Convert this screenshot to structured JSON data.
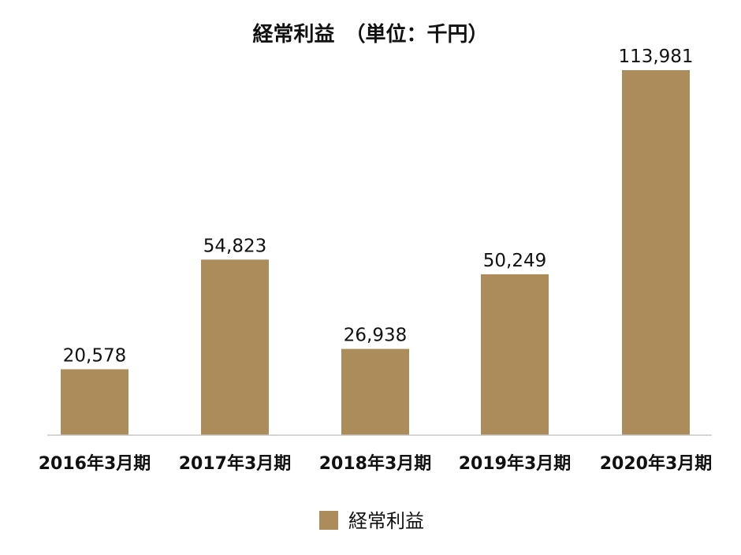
{
  "chart_data": {
    "type": "bar",
    "title": "経常利益　（単位：千円）",
    "categories": [
      "2016年3月期",
      "2017年3月期",
      "2018年3月期",
      "2019年3月期",
      "2020年3月期"
    ],
    "series": [
      {
        "name": "経常利益",
        "values": [
          20578,
          54823,
          26938,
          50249,
          113981
        ],
        "labels": [
          "20,578",
          "54,823",
          "26,938",
          "50,249",
          "113,981"
        ]
      }
    ],
    "ylim": [
      0,
      120000
    ],
    "grid": false,
    "legend": "bottom-center",
    "colors": {
      "bar": "#ad8c5c",
      "axis": "#c8c8c8",
      "text": "#111111"
    }
  }
}
